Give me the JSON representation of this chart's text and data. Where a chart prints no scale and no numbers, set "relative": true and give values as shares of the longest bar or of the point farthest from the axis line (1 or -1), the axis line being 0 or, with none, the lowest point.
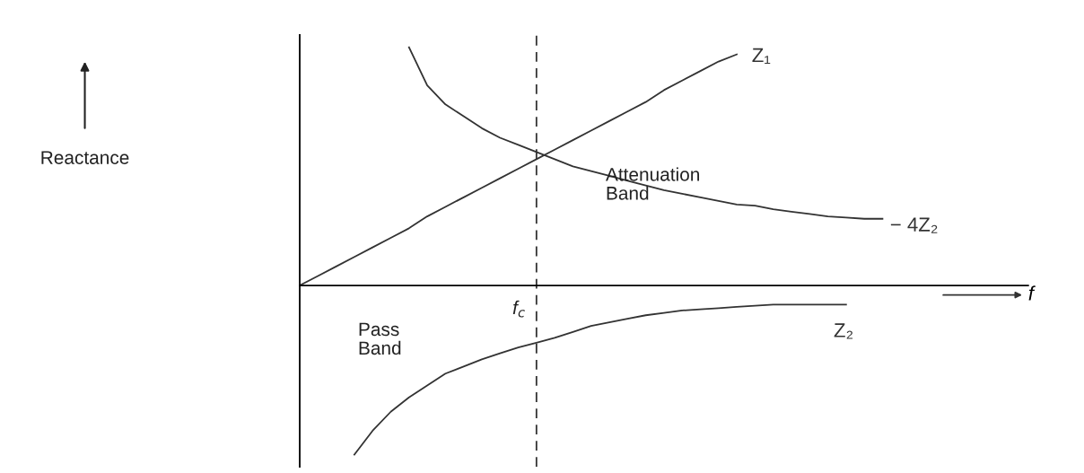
{
  "chart_data": {
    "type": "line",
    "relative": true,
    "xlabel": "f",
    "categories": [
      null,
      null,
      null,
      null,
      null,
      null,
      null,
      null,
      null,
      null,
      null,
      null,
      null,
      null,
      null,
      null,
      null,
      null,
      null,
      null,
      null,
      null,
      null,
      null,
      null,
      null,
      null,
      null,
      null,
      null,
      null,
      null,
      null,
      null,
      null,
      null,
      null,
      null,
      null,
      null,
      null
    ],
    "series": [
      {
        "name": "Z₁",
        "color": "#333333",
        "values": [
          0,
          0.04,
          0.08,
          0.12,
          0.16,
          0.2,
          0.24,
          0.29,
          0.33,
          0.37,
          0.41,
          0.45,
          0.49,
          0.53,
          0.57,
          0.61,
          0.65,
          0.69,
          0.73,
          0.77,
          0.82,
          0.86,
          0.9,
          0.94,
          0.97,
          null,
          null,
          null,
          null,
          null,
          null,
          null,
          null,
          null,
          null,
          null,
          null,
          null,
          null,
          null,
          null
        ]
      },
      {
        "name": "− 4Z₂",
        "color": "#333333",
        "values": [
          null,
          null,
          null,
          null,
          null,
          null,
          1.0,
          0.84,
          0.76,
          0.71,
          0.66,
          0.62,
          0.59,
          0.56,
          0.53,
          0.5,
          0.48,
          0.46,
          0.44,
          0.42,
          0.4,
          0.385,
          0.37,
          0.355,
          0.34,
          0.335,
          0.32,
          0.31,
          0.3,
          0.29,
          0.285,
          0.28,
          0.28,
          null,
          null,
          null,
          null,
          null,
          null,
          null,
          null
        ]
      },
      {
        "name": "Z₂",
        "color": "#333333",
        "values": [
          null,
          null,
          null,
          -0.71,
          -0.61,
          -0.53,
          -0.47,
          -0.42,
          -0.37,
          -0.34,
          -0.31,
          -0.285,
          -0.26,
          -0.24,
          -0.22,
          -0.195,
          -0.17,
          -0.155,
          -0.14,
          -0.125,
          -0.115,
          -0.105,
          -0.1,
          -0.095,
          -0.09,
          -0.085,
          -0.08,
          -0.08,
          -0.08,
          -0.08,
          -0.08,
          null,
          null,
          null,
          null,
          null,
          null,
          null,
          null,
          null,
          null
        ]
      }
    ],
    "annotations": [
      "Reactance",
      "Attenuation\nBand",
      "Pass\nBand",
      "f$_{c}$"
    ]
  }
}
